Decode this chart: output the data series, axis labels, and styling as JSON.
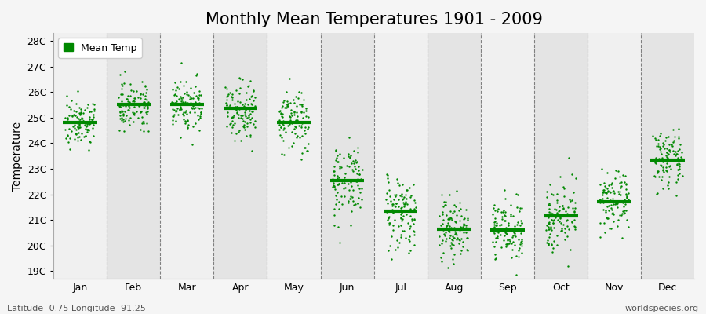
{
  "title": "Monthly Mean Temperatures 1901 - 2009",
  "ylabel": "Temperature",
  "xlabel_labels": [
    "Jan",
    "Feb",
    "Mar",
    "Apr",
    "May",
    "Jun",
    "Jul",
    "Aug",
    "Sep",
    "Oct",
    "Nov",
    "Dec"
  ],
  "ytick_labels": [
    "19C",
    "20C",
    "21C",
    "22C",
    "23C",
    "24C",
    "25C",
    "26C",
    "27C",
    "28C"
  ],
  "ytick_values": [
    19,
    20,
    21,
    22,
    23,
    24,
    25,
    26,
    27,
    28
  ],
  "ylim": [
    18.7,
    28.3
  ],
  "footer_left": "Latitude -0.75 Longitude -91.25",
  "footer_right": "worldspecies.org",
  "legend_label": "Mean Temp",
  "dot_color": "#008800",
  "mean_line_color": "#008800",
  "bg_color1": "#f0f0f0",
  "bg_color2": "#e4e4e4",
  "plot_bg": "#f5f5f5",
  "title_fontsize": 15,
  "axis_label_fontsize": 10,
  "tick_fontsize": 9,
  "month_means": [
    24.82,
    25.5,
    25.5,
    25.35,
    24.82,
    22.55,
    21.35,
    20.65,
    20.6,
    21.15,
    21.7,
    23.35
  ],
  "month_stds": [
    0.45,
    0.45,
    0.55,
    0.55,
    0.65,
    0.75,
    0.75,
    0.65,
    0.55,
    0.65,
    0.55,
    0.55
  ],
  "n_points": 109
}
